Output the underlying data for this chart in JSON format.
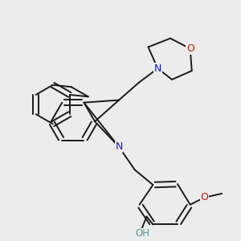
{
  "background_color": "#ececec",
  "bond_color": "#1a1a1a",
  "N_color": "#1414cc",
  "O_color": "#cc1400",
  "OH_color": "#559999",
  "bond_width": 1.4,
  "dbo": 0.013,
  "figsize": [
    3.0,
    3.0
  ],
  "dpi": 100,
  "xlim": [
    0.0,
    1.0
  ],
  "ylim": [
    0.0,
    1.0
  ]
}
